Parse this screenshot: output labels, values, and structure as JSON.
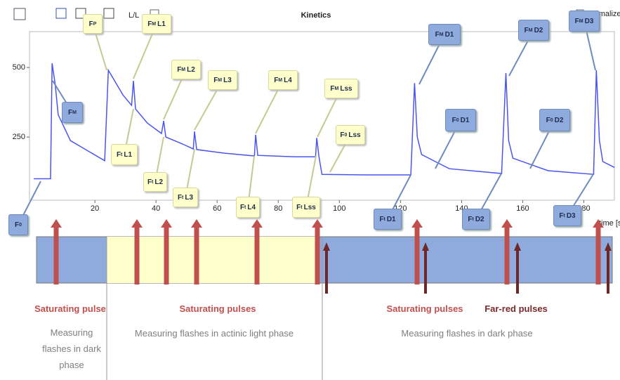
{
  "toolbar": {
    "button": "L/L",
    "checkbox": "Normalize"
  },
  "chart_data": {
    "type": "line",
    "title": "Kinetics",
    "x_label": "time [s",
    "color": "#4a55f0",
    "xlim": [
      -1.4,
      190
    ],
    "ylim": [
      23,
      629
    ],
    "xticks": [
      20,
      40,
      60,
      80,
      100,
      120,
      140,
      160,
      180
    ],
    "yticks": [
      250,
      500
    ],
    "x": [
      0,
      5.5,
      6,
      7,
      8,
      12,
      23.2,
      24.4,
      29.2,
      32,
      32.6,
      33.3,
      37.2,
      41.8,
      42.5,
      43.2,
      48.7,
      52.2,
      52.6,
      53.3,
      62.5,
      72.2,
      72.6,
      73.3,
      85.5,
      92.2,
      92.6,
      93.3,
      94.3,
      108.5,
      123.4,
      124.6,
      125.5,
      126.9,
      136,
      153.1,
      154.5,
      155.4,
      156.8,
      168.3,
      183.2,
      184.1,
      185.1,
      186.2,
      190
    ],
    "values": [
      100,
      100,
      515,
      440,
      330,
      237,
      165,
      490,
      401,
      364,
      452,
      351,
      300,
      263,
      308,
      250,
      225,
      207,
      270,
      205,
      192,
      182,
      258,
      184,
      179,
      179,
      247,
      182,
      116,
      114,
      114,
      444,
      250,
      187,
      136,
      119,
      480,
      237,
      174,
      129,
      116,
      490,
      237,
      162,
      141
    ],
    "annotations": [
      {
        "base": "F",
        "sub": "0"
      },
      {
        "base": "F",
        "sub": "M"
      },
      {
        "base": "F",
        "sub": "P"
      },
      {
        "base": "F",
        "sub": "M",
        "text": "L1"
      },
      {
        "base": "F",
        "sub": "M",
        "text": "L2"
      },
      {
        "base": "F",
        "sub": "M",
        "text": "L3"
      },
      {
        "base": "F",
        "sub": "M",
        "text": "L4"
      },
      {
        "base": "F",
        "sub": "M",
        "text": "Lss"
      },
      {
        "base": "F",
        "sub": "0",
        "text": "Lss"
      },
      {
        "base": "F",
        "sub": "t",
        "text": "L1"
      },
      {
        "base": "F",
        "sub": "t",
        "text": "L2"
      },
      {
        "base": "F",
        "sub": "t",
        "text": "L3"
      },
      {
        "base": "F",
        "sub": "t",
        "text": "L4"
      },
      {
        "base": "F",
        "sub": "t",
        "text": "Lss"
      },
      {
        "base": "F",
        "sub": "M",
        "text": "D1"
      },
      {
        "base": "F",
        "sub": "0",
        "text": "D1"
      },
      {
        "base": "F",
        "sub": "t",
        "text": "D1"
      },
      {
        "base": "F",
        "sub": "M",
        "text": "D2"
      },
      {
        "base": "F",
        "sub": "0",
        "text": "D2"
      },
      {
        "base": "F",
        "sub": "t",
        "text": "D2"
      },
      {
        "base": "F",
        "sub": "M",
        "text": "D3"
      },
      {
        "base": "F",
        "sub": "t",
        "text": "D3"
      }
    ]
  },
  "diagram": {
    "pulse_labels": [
      "Saturating pulse",
      "Saturating pulses",
      "Saturating pulses",
      "Far-red pulses"
    ],
    "phase_labels": [
      "Measuring flashes in dark phase",
      "Measuring flashes in actinic light phase",
      "Measuring flashes in dark phase"
    ]
  }
}
